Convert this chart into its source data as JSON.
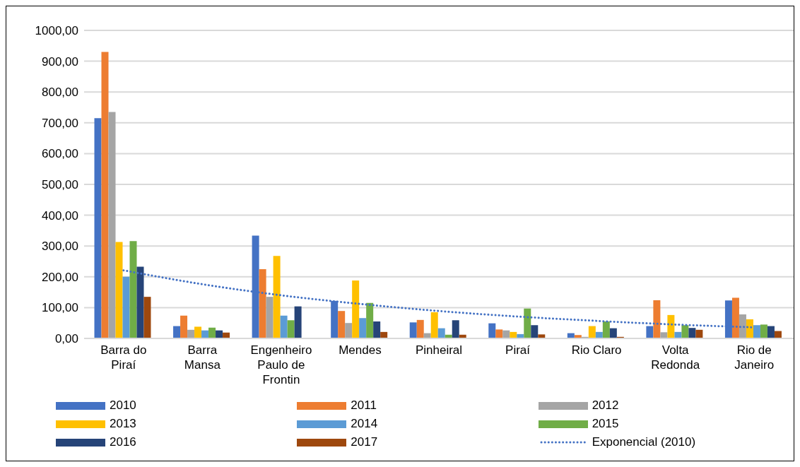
{
  "chart_data": {
    "type": "bar",
    "categories": [
      "Barra do Piraí",
      "Barra Mansa",
      "Engenheiro Paulo de Frontin",
      "Mendes",
      "Pinheiral",
      "Piraí",
      "Rio Claro",
      "Volta Redonda",
      "Rio de Janeiro"
    ],
    "series": [
      {
        "name": "2010",
        "color": "#4472c4",
        "values": [
          715,
          40,
          334,
          122,
          52,
          49,
          17,
          40,
          123
        ]
      },
      {
        "name": "2011",
        "color": "#ed7d31",
        "values": [
          930,
          74,
          225,
          89,
          60,
          29,
          11,
          124,
          132
        ]
      },
      {
        "name": "2012",
        "color": "#a5a5a5",
        "values": [
          735,
          28,
          135,
          50,
          17,
          26,
          5,
          20,
          78
        ]
      },
      {
        "name": "2013",
        "color": "#ffc000",
        "values": [
          313,
          38,
          268,
          188,
          85,
          21,
          40,
          76,
          62
        ]
      },
      {
        "name": "2014",
        "color": "#5b9bd5",
        "values": [
          200,
          26,
          74,
          66,
          33,
          14,
          21,
          21,
          43
        ]
      },
      {
        "name": "2015",
        "color": "#70ad47",
        "values": [
          316,
          35,
          59,
          115,
          12,
          97,
          55,
          43,
          45
        ]
      },
      {
        "name": "2016",
        "color": "#264478",
        "values": [
          233,
          26,
          104,
          55,
          59,
          43,
          33,
          34,
          40
        ]
      },
      {
        "name": "2017",
        "color": "#9e480e",
        "values": [
          135,
          19,
          0,
          21,
          12,
          13,
          5,
          28,
          24
        ]
      },
      {
        "name": "Exponencial (2010)",
        "type": "line",
        "line_style": "dotted",
        "color": "#4472c4",
        "values": [
          221,
          176,
          140,
          112,
          89,
          71,
          57,
          45,
          36
        ]
      }
    ],
    "ylim": [
      0,
      1000
    ],
    "yticks": [
      {
        "value": 0,
        "label": "0,00"
      },
      {
        "value": 100,
        "label": "100,00"
      },
      {
        "value": 200,
        "label": "200,00"
      },
      {
        "value": 300,
        "label": "300,00"
      },
      {
        "value": 400,
        "label": "400,00"
      },
      {
        "value": 500,
        "label": "500,00"
      },
      {
        "value": 600,
        "label": "600,00"
      },
      {
        "value": 700,
        "label": "700,00"
      },
      {
        "value": 800,
        "label": "800,00"
      },
      {
        "value": 900,
        "label": "900,00"
      },
      {
        "value": 1000,
        "label": "1000,00"
      }
    ],
    "grid": "y",
    "legend": "bottom"
  }
}
